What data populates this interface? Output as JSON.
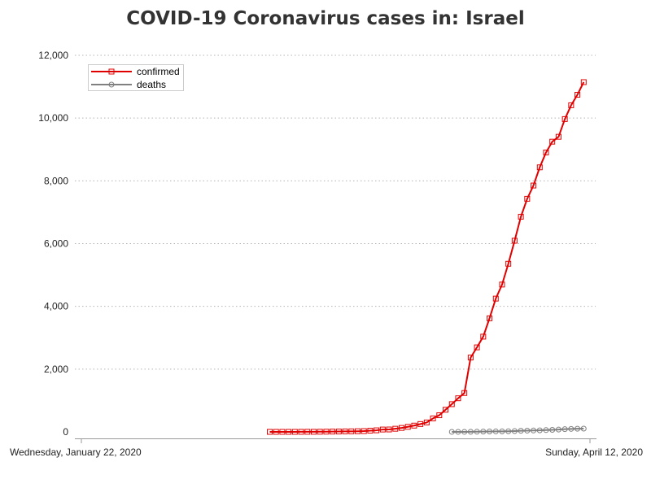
{
  "chart_data": {
    "type": "line",
    "title": "COVID-19 Coronavirus cases in: Israel",
    "xlabel": "",
    "ylabel": "",
    "x_range": [
      "2020-01-22",
      "2020-04-12"
    ],
    "x_tick_labels": [
      "Wednesday, January 22, 2020",
      "Sunday, April 12, 2020"
    ],
    "ylim": [
      0,
      12000
    ],
    "y_ticks": [
      0,
      2000,
      4000,
      6000,
      8000,
      10000,
      12000
    ],
    "y_tick_labels": [
      "0",
      "2,000",
      "4,000",
      "6,000",
      "8,000",
      "10,000",
      "12,000"
    ],
    "grid": "horizontal dotted",
    "legend_position": "top-left",
    "series": [
      {
        "name": "confirmed",
        "color": "#e00000",
        "marker": "square",
        "points": [
          [
            "2020-02-21",
            1
          ],
          [
            "2020-02-22",
            1
          ],
          [
            "2020-02-23",
            1
          ],
          [
            "2020-02-24",
            1
          ],
          [
            "2020-02-25",
            1
          ],
          [
            "2020-02-26",
            2
          ],
          [
            "2020-02-27",
            3
          ],
          [
            "2020-02-28",
            3
          ],
          [
            "2020-02-29",
            5
          ],
          [
            "2020-03-01",
            7
          ],
          [
            "2020-03-02",
            10
          ],
          [
            "2020-03-03",
            12
          ],
          [
            "2020-03-04",
            15
          ],
          [
            "2020-03-05",
            17
          ],
          [
            "2020-03-06",
            21
          ],
          [
            "2020-03-07",
            25
          ],
          [
            "2020-03-08",
            39
          ],
          [
            "2020-03-09",
            50
          ],
          [
            "2020-03-10",
            75
          ],
          [
            "2020-03-11",
            77
          ],
          [
            "2020-03-12",
            100
          ],
          [
            "2020-03-13",
            126
          ],
          [
            "2020-03-14",
            161
          ],
          [
            "2020-03-15",
            200
          ],
          [
            "2020-03-16",
            250
          ],
          [
            "2020-03-17",
            300
          ],
          [
            "2020-03-18",
            430
          ],
          [
            "2020-03-19",
            530
          ],
          [
            "2020-03-20",
            705
          ],
          [
            "2020-03-21",
            883
          ],
          [
            "2020-03-22",
            1071
          ],
          [
            "2020-03-23",
            1238
          ],
          [
            "2020-03-24",
            2369
          ],
          [
            "2020-03-25",
            2693
          ],
          [
            "2020-03-26",
            3035
          ],
          [
            "2020-03-27",
            3619
          ],
          [
            "2020-03-28",
            4247
          ],
          [
            "2020-03-29",
            4695
          ],
          [
            "2020-03-30",
            5358
          ],
          [
            "2020-03-31",
            6092
          ],
          [
            "2020-04-01",
            6857
          ],
          [
            "2020-04-02",
            7428
          ],
          [
            "2020-04-03",
            7851
          ],
          [
            "2020-04-04",
            8430
          ],
          [
            "2020-04-05",
            8904
          ],
          [
            "2020-04-06",
            9248
          ],
          [
            "2020-04-07",
            9404
          ],
          [
            "2020-04-08",
            9968
          ],
          [
            "2020-04-09",
            10408
          ],
          [
            "2020-04-10",
            10743
          ],
          [
            "2020-04-11",
            11145
          ]
        ]
      },
      {
        "name": "deaths",
        "color": "#808080",
        "marker": "circle",
        "points": [
          [
            "2020-03-21",
            1
          ],
          [
            "2020-03-22",
            1
          ],
          [
            "2020-03-23",
            1
          ],
          [
            "2020-03-24",
            3
          ],
          [
            "2020-03-25",
            5
          ],
          [
            "2020-03-26",
            10
          ],
          [
            "2020-03-27",
            12
          ],
          [
            "2020-03-28",
            15
          ],
          [
            "2020-03-29",
            16
          ],
          [
            "2020-03-30",
            20
          ],
          [
            "2020-03-31",
            26
          ],
          [
            "2020-04-01",
            36
          ],
          [
            "2020-04-02",
            40
          ],
          [
            "2020-04-03",
            44
          ],
          [
            "2020-04-04",
            49
          ],
          [
            "2020-04-05",
            57
          ],
          [
            "2020-04-06",
            65
          ],
          [
            "2020-04-07",
            73
          ],
          [
            "2020-04-08",
            86
          ],
          [
            "2020-04-09",
            95
          ],
          [
            "2020-04-10",
            101
          ],
          [
            "2020-04-11",
            103
          ]
        ]
      }
    ]
  }
}
